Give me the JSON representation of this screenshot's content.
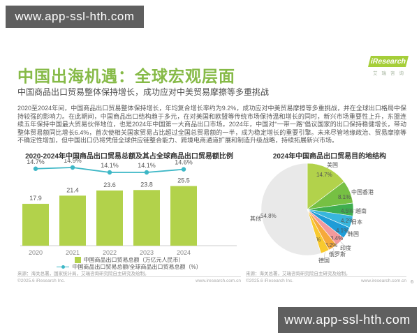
{
  "watermark": {
    "text": "www.app-ssl-hth.com"
  },
  "logo": {
    "name": "iResearch",
    "sub": "艾瑞咨询"
  },
  "header": {
    "title": "中国出海机遇：全球宏观层面",
    "subtitle": "中国商品出口贸易整体保持增长，成功应对中美贸易摩擦等多重挑战"
  },
  "body_paragraph": "2020至2024年间，中国商品出口贸易整体保持增长，年均复合增长率约为9.2%，成功应对中美贸易摩擦等多重挑战，并在全球出口格局中保持较强的影响力。在此期间，中国商品出口结构趋于多元，在对美国和欧盟等传统市场保持温和增长的同时，新兴市场重要性上升，东盟连续五年保持中国最大贸易伙伴地位，也是2024年中国第一大商品出口市场。2024年，中国对“一带一路”倡议国家的出口保持稳健增长，带动整体贸易额同比增长6.4%，首次使相关国家贸易占比超过全国总贸易额的一半，成为稳定增长的重要引擎。未来尽管地缘政治、贸易摩擦等不确定性增加，但中国出口仍将凭借全球供应链整合能力、跨境电商通道扩展和制造升级战略，持续拓展新兴市场。",
  "footer": {
    "source_left": "来源：海关总署，国家统计局，艾瑞咨询研究院自主研究及绘制。",
    "source_right": "来源：海关总署，艾瑞咨询研究院自主研究及绘制。",
    "copyright": "©2025.6 iResearch Inc.",
    "website": "www.iresearch.com.cn",
    "page_number": "6"
  },
  "chart_data": [
    {
      "type": "bar",
      "subtype": "bar+line combo",
      "title": "2020-2024年中国商品出口贸易总额及其占全球商品出口贸易额比例",
      "categories": [
        "2020",
        "2021",
        "2022",
        "2023",
        "2024"
      ],
      "series": [
        {
          "name": "中国商品出口贸易总额（万亿元人民币）",
          "type": "bar",
          "color": "#b2d24b",
          "values": [
            17.9,
            21.4,
            23.6,
            23.8,
            25.5
          ]
        },
        {
          "name": "中国商品出口贸易总额/全球商品出口贸易总额（%）",
          "type": "line",
          "color": "#3db7c6",
          "unit": "%",
          "values": [
            14.7,
            14.9,
            14.1,
            14.1,
            14.6
          ]
        }
      ],
      "legend_position": "bottom",
      "grid": false
    },
    {
      "type": "pie",
      "title": "2024年中国商品出口贸易目的地结构",
      "slices": [
        {
          "label": "美国",
          "value": 14.7,
          "color": "#b2d24b"
        },
        {
          "label": "中国香港",
          "value": 8.1,
          "color": "#76c043"
        },
        {
          "label": "越南",
          "value": 4.5,
          "color": "#3fae4e"
        },
        {
          "label": "日本",
          "value": 4.2,
          "color": "#38b6dd"
        },
        {
          "label": "韩国",
          "value": 4.1,
          "color": "#1e9cd7"
        },
        {
          "label": "印度",
          "value": 3.4,
          "color": "#f29a9c"
        },
        {
          "label": "俄罗斯",
          "value": 3.2,
          "color": "#f6a93b"
        },
        {
          "label": "德国",
          "value": 3.0,
          "color": "#f8c92e"
        },
        {
          "label": "其他",
          "value": 54.8,
          "color": "#e9e9e9"
        }
      ]
    }
  ]
}
